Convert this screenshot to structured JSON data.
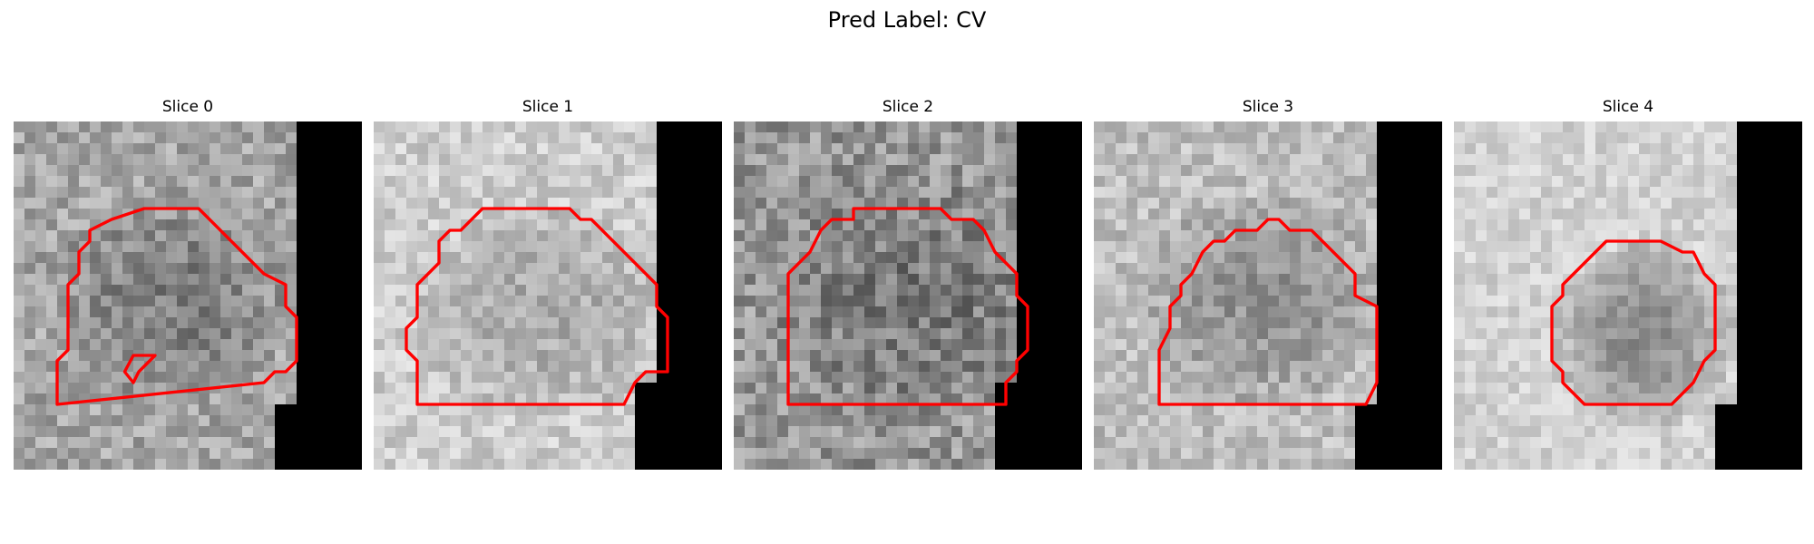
{
  "title": "Pred Label: CV",
  "panels": [
    {
      "label": "Slice 0"
    },
    {
      "label": "Slice 1"
    },
    {
      "label": "Slice 2"
    },
    {
      "label": "Slice 3"
    },
    {
      "label": "Slice 4"
    }
  ],
  "colors": {
    "contour": "#ff0000",
    "mask": "#000000",
    "background": "#ffffff"
  }
}
